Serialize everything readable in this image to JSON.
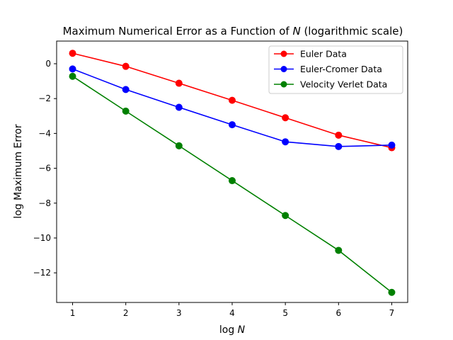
{
  "chart_data": {
    "type": "line",
    "title": {
      "prefix": "Maximum Numerical Error as a Function of ",
      "var": "N",
      "suffix": " (logarithmic scale)"
    },
    "xlabel": {
      "prefix": "log ",
      "var": "N"
    },
    "ylabel": "log Maximum Error",
    "x": [
      1,
      2,
      3,
      4,
      5,
      6,
      7
    ],
    "xlim": [
      0.7,
      7.3
    ],
    "ylim": [
      -13.7,
      1.3
    ],
    "xticks": [
      1,
      2,
      3,
      4,
      5,
      6,
      7
    ],
    "yticks": [
      0,
      -2,
      -4,
      -6,
      -8,
      -10,
      -12
    ],
    "grid": false,
    "legend_position": "top-right",
    "series": [
      {
        "name": "Euler Data",
        "color": "#ff0000",
        "values": [
          0.6,
          -0.15,
          -1.12,
          -2.1,
          -3.1,
          -4.1,
          -4.82
        ]
      },
      {
        "name": "Euler-Cromer Data",
        "color": "#0000ff",
        "values": [
          -0.3,
          -1.48,
          -2.5,
          -3.5,
          -4.48,
          -4.75,
          -4.67
        ]
      },
      {
        "name": "Velocity Verlet Data",
        "color": "#008000",
        "values": [
          -0.72,
          -2.72,
          -4.71,
          -6.71,
          -8.71,
          -10.71,
          -13.12
        ]
      }
    ]
  }
}
